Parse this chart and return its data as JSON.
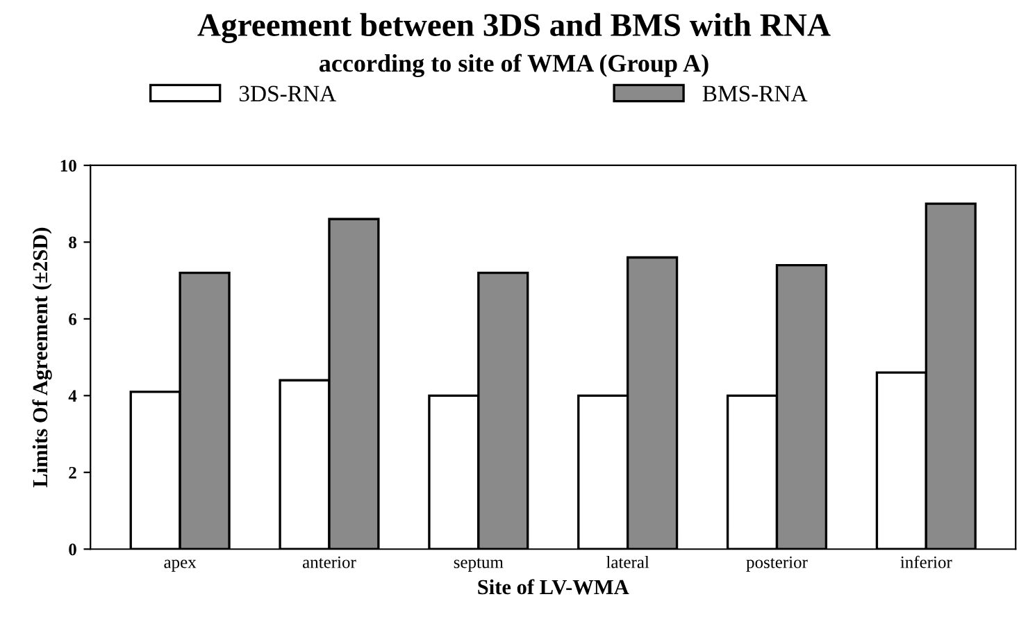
{
  "chart_data": {
    "type": "bar",
    "title": "Agreement between 3DS and BMS with RNA",
    "subtitle": "according to site of WMA (Group A)",
    "xlabel": "Site of LV-WMA",
    "ylabel": "Limits Of Agreement (±2SD)",
    "categories": [
      "apex",
      "anterior",
      "septum",
      "lateral",
      "posterior",
      "inferior"
    ],
    "series": [
      {
        "name": "3DS-RNA",
        "color": "#ffffff",
        "values": [
          4.1,
          4.4,
          4.0,
          4.0,
          4.0,
          4.6
        ]
      },
      {
        "name": "BMS-RNA",
        "color": "#8a8a8a",
        "values": [
          7.2,
          8.6,
          7.2,
          7.6,
          7.4,
          9.0
        ]
      }
    ],
    "ylim": [
      0,
      10
    ],
    "yticks": [
      0,
      2,
      4,
      6,
      8,
      10
    ],
    "grid": false,
    "legend": "top"
  }
}
